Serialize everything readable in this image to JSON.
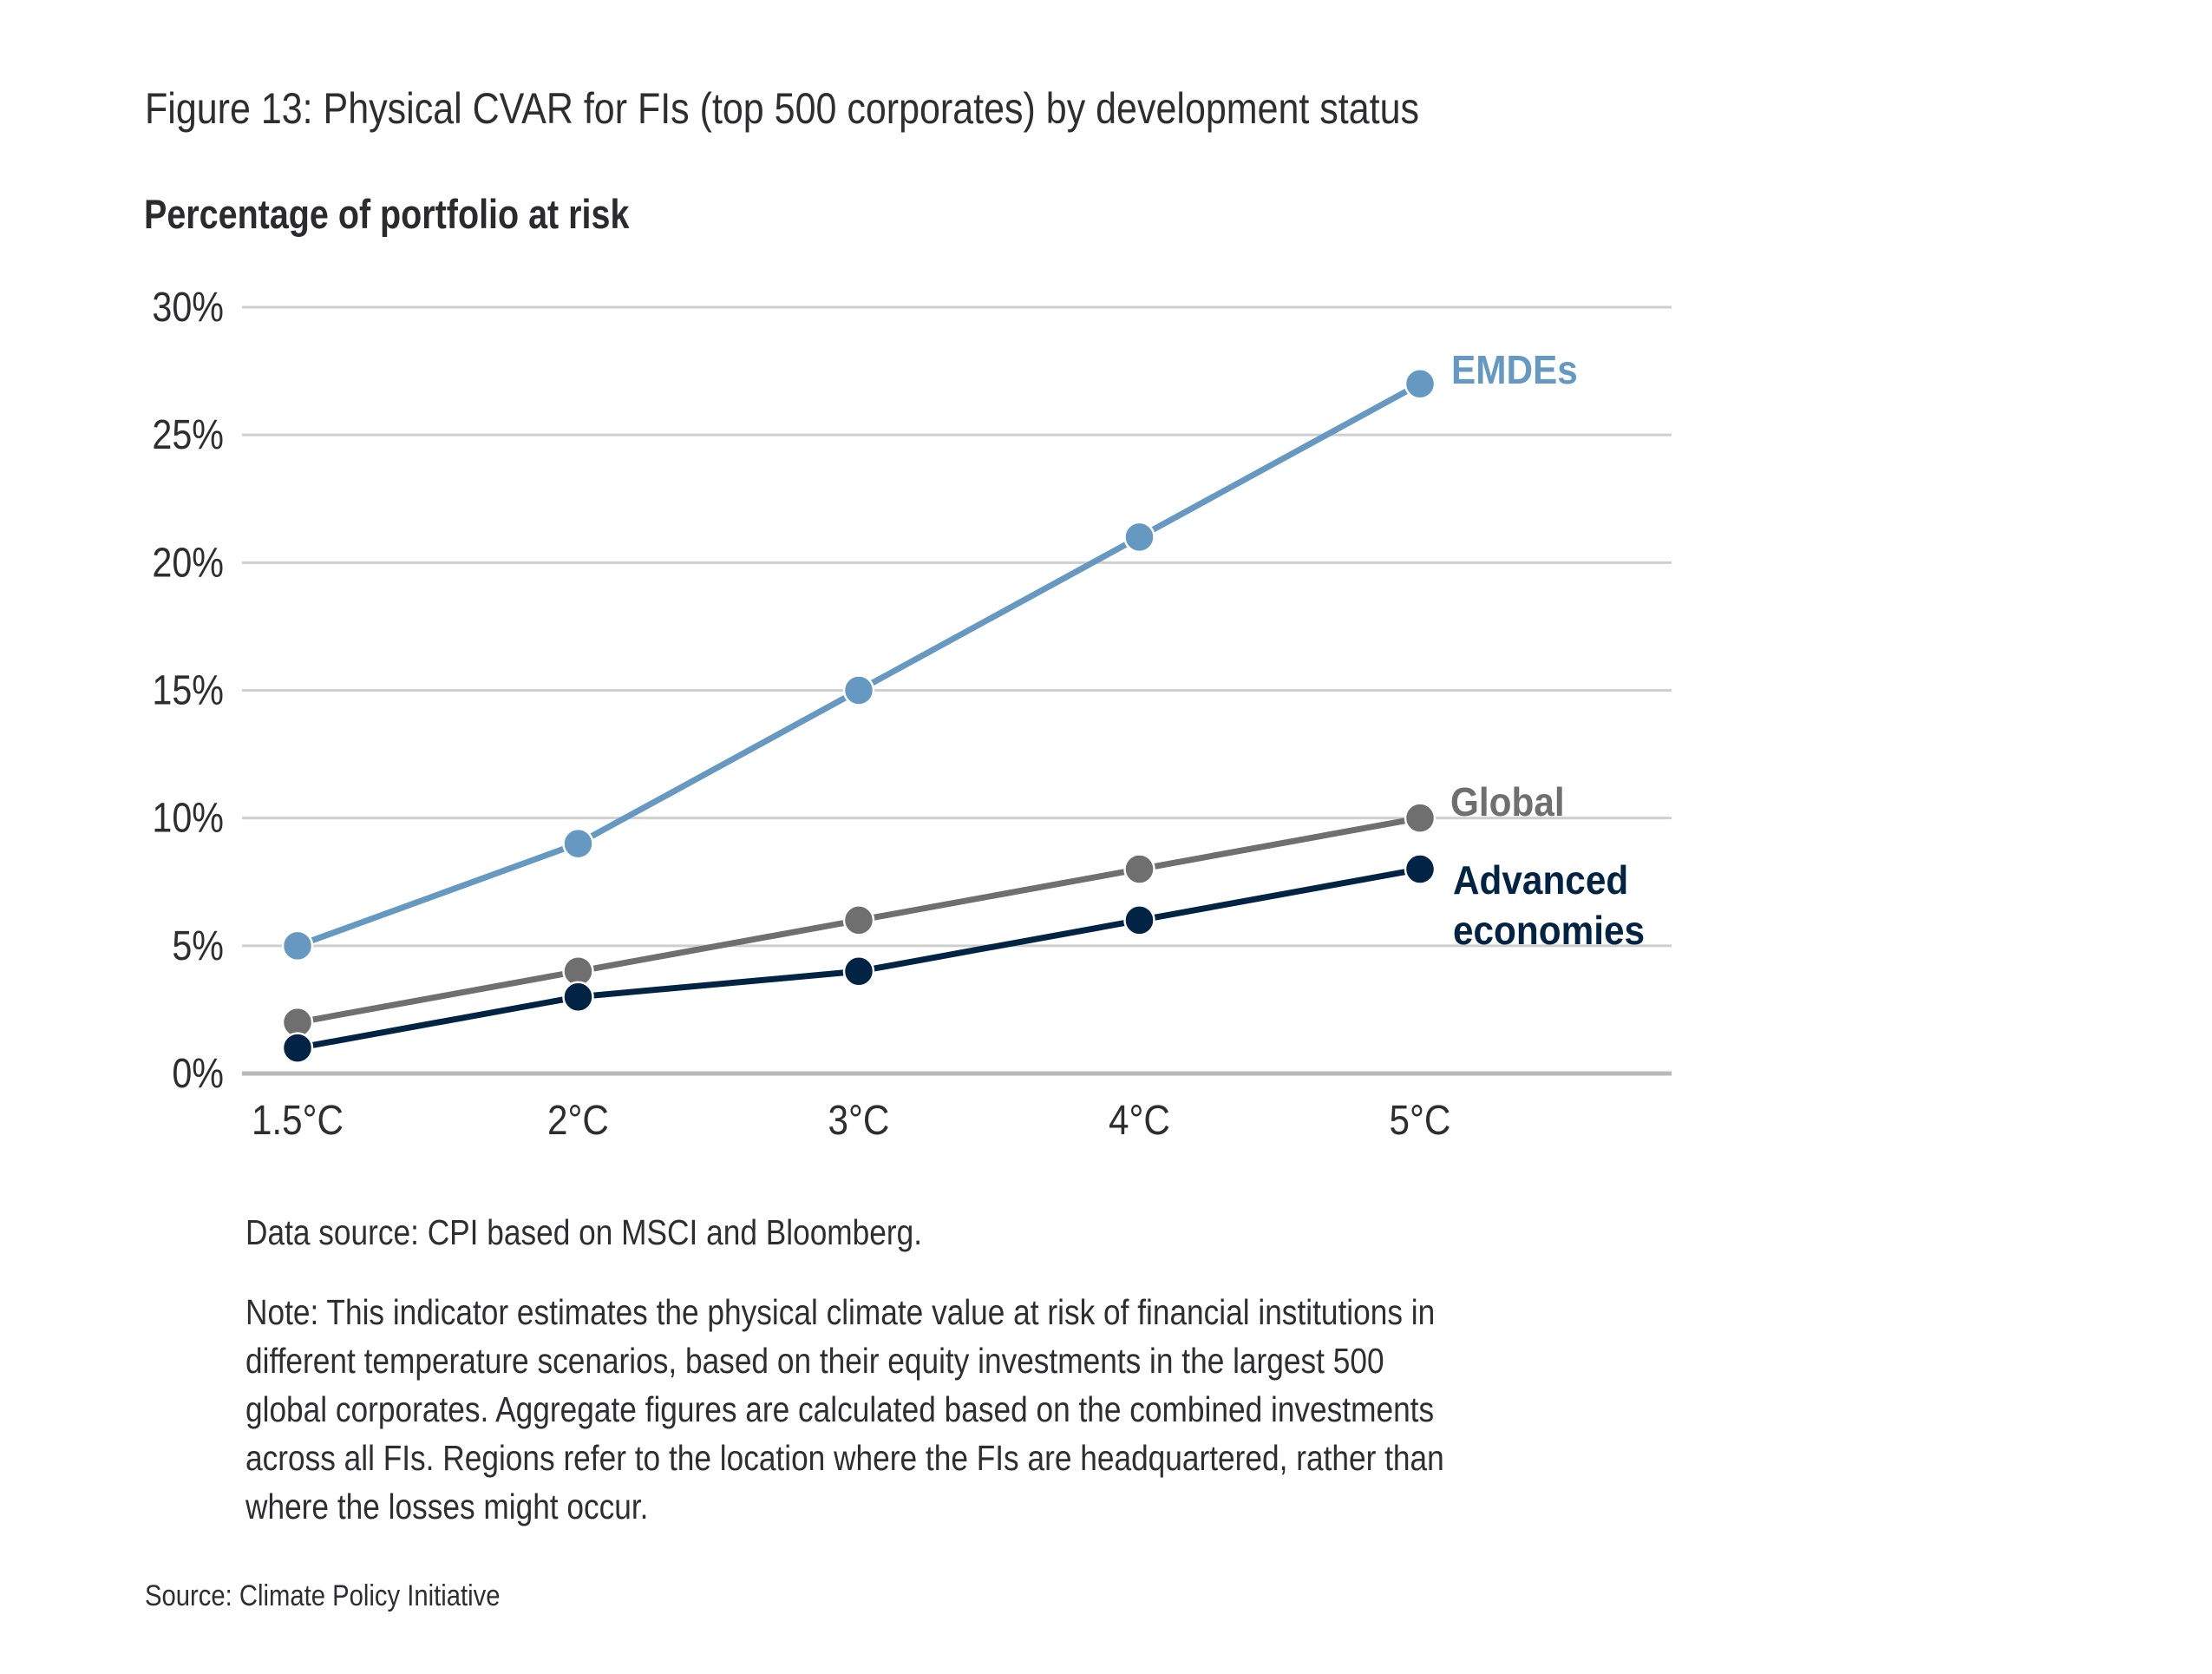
{
  "figure": {
    "title": "Figure 13: Physical CVAR for FIs (top 500 corporates) by development status",
    "subtitle": "Percentage of portfolio at risk",
    "data_source": "Data source: CPI based on MSCI and Bloomberg.",
    "note_lines": [
      "Note: This indicator estimates the physical climate value at risk of financial institutions in",
      "different temperature scenarios, based on their equity investments in the largest 500",
      "global corporates. Aggregate figures are calculated based on the combined investments",
      "across all FIs. Regions refer to the location where the FIs are headquartered, rather than",
      "where the losses might occur."
    ],
    "source": "Source: Climate Policy Initiative"
  },
  "chart_data": {
    "type": "line",
    "title": "Figure 13: Physical CVAR for FIs (top 500 corporates) by development status",
    "ylabel": "Percentage of portfolio at risk",
    "xlabel": "",
    "categories": [
      "1.5°C",
      "2°C",
      "3°C",
      "4°C",
      "5°C"
    ],
    "ylim": [
      0,
      30
    ],
    "yticks": [
      0,
      5,
      10,
      15,
      20,
      25,
      30
    ],
    "ytick_labels": [
      "0%",
      "5%",
      "10%",
      "15%",
      "20%",
      "25%",
      "30%"
    ],
    "grid": true,
    "legend": "direct labels at line ends (right)",
    "series": [
      {
        "name": "EMDEs",
        "label_lines": [
          "EMDEs"
        ],
        "color": "#6699c1",
        "values": [
          5,
          9,
          15,
          21,
          27
        ]
      },
      {
        "name": "Global",
        "label_lines": [
          "Global"
        ],
        "color": "#6f6f6f",
        "values": [
          2,
          4,
          6,
          8,
          10
        ]
      },
      {
        "name": "Advanced economies",
        "label_lines": [
          "Advanced",
          "economies"
        ],
        "color": "#022444",
        "values": [
          1,
          3,
          4,
          6,
          8
        ]
      }
    ]
  }
}
